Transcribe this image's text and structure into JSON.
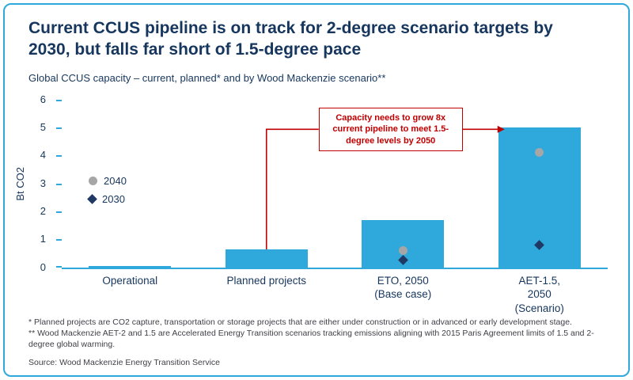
{
  "header": {
    "title": "Current CCUS pipeline is on track for 2-degree scenario targets by 2030, but falls far short of 1.5-degree pace"
  },
  "chart_data": {
    "type": "bar",
    "title": "Global CCUS capacity – current, planned* and by Wood Mackenzie scenario**",
    "ylabel": "Bt CO2",
    "ylim": [
      0,
      6
    ],
    "yticks": [
      0,
      1,
      2,
      3,
      4,
      5,
      6
    ],
    "categories": [
      "Operational",
      "Planned projects",
      "ETO, 2050\n(Base case)",
      "AET-1.5, 2050\n(Scenario)"
    ],
    "bars": {
      "name": "Capacity pipeline",
      "values": [
        0.05,
        0.65,
        1.7,
        5.0
      ],
      "color": "#2FA8DC"
    },
    "series": [
      {
        "name": "2040",
        "marker": "circle",
        "color": "#A6A6A6",
        "values": [
          null,
          null,
          0.6,
          4.1
        ]
      },
      {
        "name": "2030",
        "marker": "diamond",
        "color": "#1F3864",
        "values": [
          null,
          null,
          0.25,
          0.8
        ]
      }
    ],
    "legend_position": "inside-left",
    "grid": false,
    "axis_color": "#2FA8DC",
    "text_color": "#16365D",
    "annotation": {
      "text": "Capacity needs to grow 8x current pipeline to meet 1.5-degree levels by 2050",
      "color": "#C00000",
      "points_from": "Planned projects",
      "points_to": "AET-1.5, 2050 (Scenario)"
    }
  },
  "footnotes": {
    "line1": "* Planned projects are CO2 capture, transportation or storage projects that are either under construction or in advanced or early development stage.",
    "line2": "** Wood Mackenzie AET-2 and 1.5 are Accelerated Energy Transition scenarios tracking emissions aligning with 2015 Paris Agreement limits of 1.5 and 2-degree global warming.",
    "source": "Source: Wood Mackenzie Energy Transition Service"
  }
}
